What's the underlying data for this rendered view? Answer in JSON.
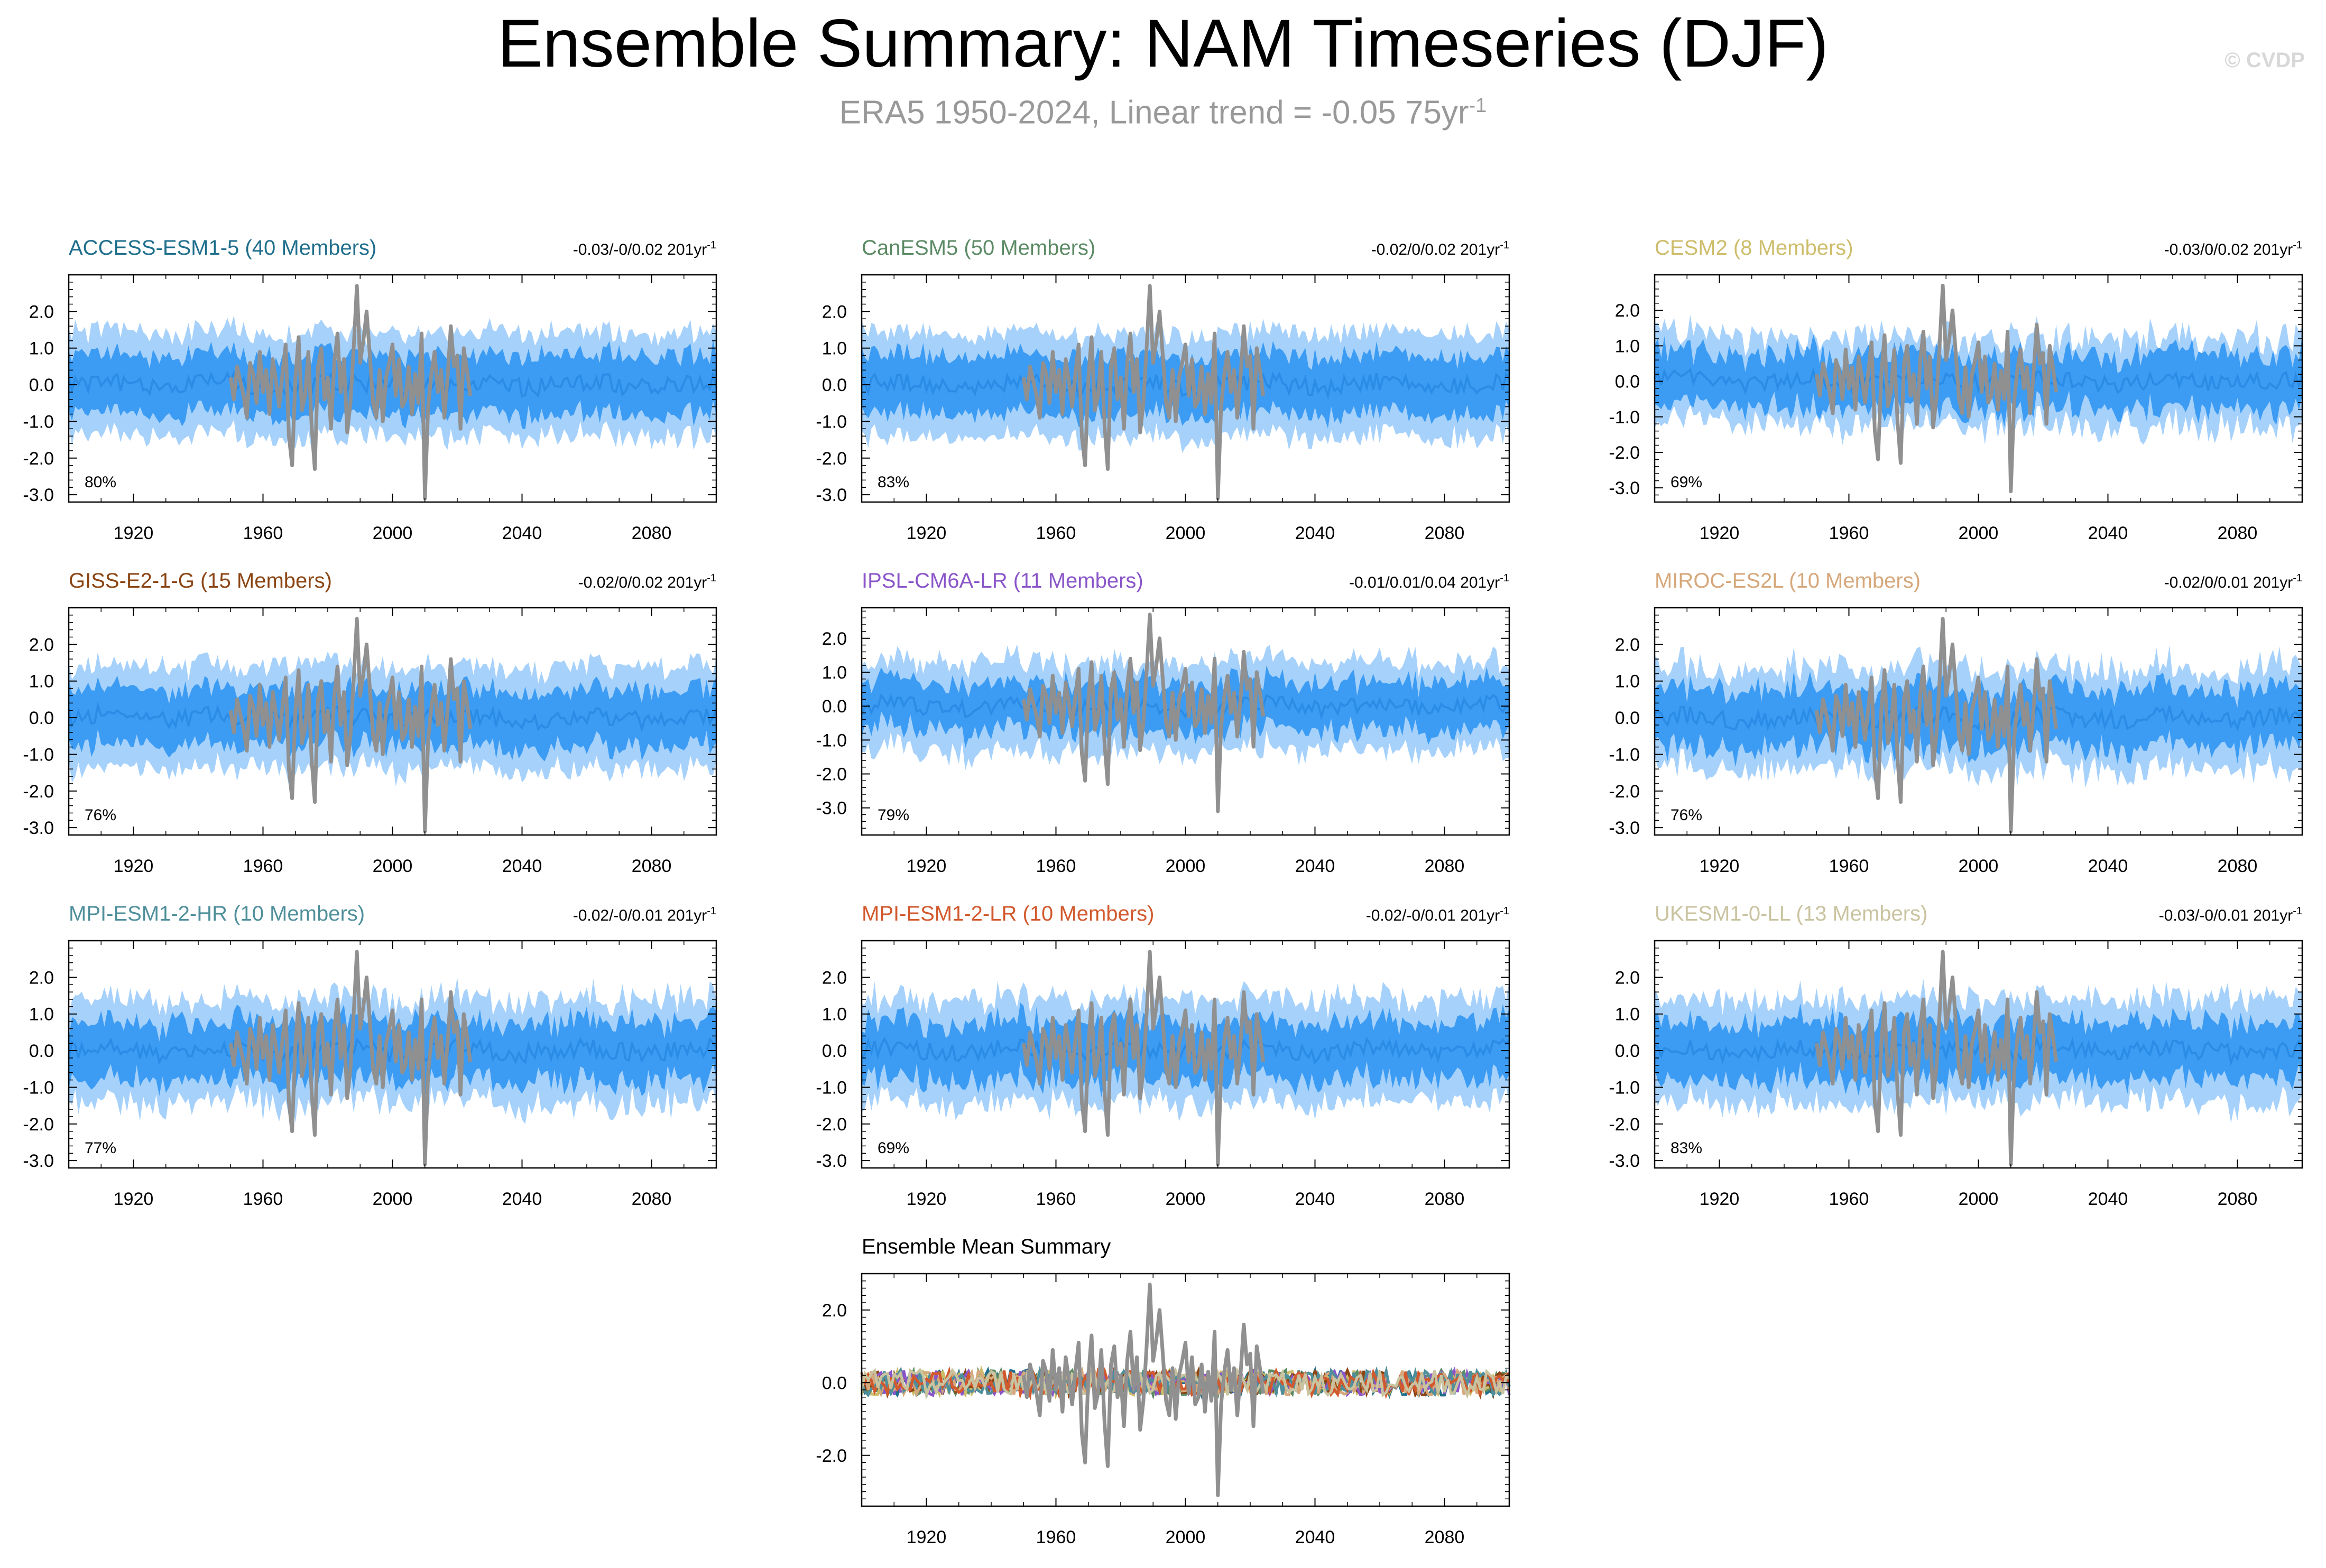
{
  "title": "Ensemble Summary: NAM Timeseries (DJF)",
  "subtitle": {
    "prefix": "ERA5 1950-2024, Linear trend = -0.05 75yr",
    "superscript": "-1"
  },
  "copyright": "© CVDP",
  "colors": {
    "band_outer": "#a6d1fb",
    "band_inner": "#3c9cf3",
    "mean_line": "#2a8ce6",
    "obs_line": "#909090",
    "axis": "#000000"
  },
  "chart_data": [
    {
      "type": "area",
      "title": "ACCESS-ESM1-5 (40 Members)",
      "title_color": "#1f6e8c",
      "trend_text": "-0.03/-0/0.02 201yr",
      "trend_sup": "-1",
      "percent_label": "80%",
      "x_ticks": [
        "1920",
        "1960",
        "2000",
        "2040",
        "2080"
      ],
      "y_ticks": [
        "2.0",
        "1.0",
        "0.0",
        "-1.0",
        "-2.0",
        "-3.0"
      ],
      "xlim": [
        1900,
        2100
      ],
      "ylim": [
        -3.2,
        3.0
      ],
      "outer_band_amp": 1.35,
      "inner_band_amp": 0.75,
      "noise": 0.35,
      "seed": 11
    },
    {
      "type": "area",
      "title": "CanESM5 (50 Members)",
      "title_color": "#5b8a64",
      "trend_text": "-0.02/0/0.02 201yr",
      "trend_sup": "-1",
      "percent_label": "83%",
      "x_ticks": [
        "1920",
        "1960",
        "2000",
        "2040",
        "2080"
      ],
      "y_ticks": [
        "2.0",
        "1.0",
        "0.0",
        "-1.0",
        "-2.0",
        "-3.0"
      ],
      "xlim": [
        1900,
        2100
      ],
      "ylim": [
        -3.2,
        3.0
      ],
      "outer_band_amp": 1.35,
      "inner_band_amp": 0.75,
      "noise": 0.3,
      "seed": 23
    },
    {
      "type": "area",
      "title": "CESM2 (8 Members)",
      "title_color": "#cdbd6b",
      "trend_text": "-0.03/0/0.02 201yr",
      "trend_sup": "-1",
      "percent_label": "69%",
      "x_ticks": [
        "1920",
        "1960",
        "2000",
        "2040",
        "2080"
      ],
      "y_ticks": [
        "2.0",
        "1.0",
        "0.0",
        "-1.0",
        "-2.0",
        "-3.0"
      ],
      "xlim": [
        1900,
        2100
      ],
      "ylim": [
        -3.4,
        3.0
      ],
      "outer_band_amp": 1.1,
      "inner_band_amp": 0.65,
      "noise": 0.7,
      "seed": 37
    },
    {
      "type": "area",
      "title": "GISS-E2-1-G (15 Members)",
      "title_color": "#8b4513",
      "trend_text": "-0.02/0/0.02 201yr",
      "trend_sup": "-1",
      "percent_label": "76%",
      "x_ticks": [
        "1920",
        "1960",
        "2000",
        "2040",
        "2080"
      ],
      "y_ticks": [
        "2.0",
        "1.0",
        "0.0",
        "-1.0",
        "-2.0",
        "-3.0"
      ],
      "xlim": [
        1900,
        2100
      ],
      "ylim": [
        -3.2,
        3.0
      ],
      "outer_band_amp": 1.3,
      "inner_band_amp": 0.7,
      "noise": 0.45,
      "seed": 41
    },
    {
      "type": "area",
      "title": "IPSL-CM6A-LR (11 Members)",
      "title_color": "#8a55c9",
      "trend_text": "-0.01/0.01/0.04 201yr",
      "trend_sup": "-1",
      "percent_label": "79%",
      "x_ticks": [
        "1920",
        "1960",
        "2000",
        "2040",
        "2080"
      ],
      "y_ticks": [
        "2.0",
        "1.0",
        "0.0",
        "-1.0",
        "-2.0",
        "-3.0"
      ],
      "xlim": [
        1900,
        2100
      ],
      "ylim": [
        -3.8,
        2.9
      ],
      "outer_band_amp": 1.2,
      "inner_band_amp": 0.6,
      "noise": 0.6,
      "seed": 53
    },
    {
      "type": "area",
      "title": "MIROC-ES2L (10 Members)",
      "title_color": "#d6a77a",
      "trend_text": "-0.02/0/0.01 201yr",
      "trend_sup": "-1",
      "percent_label": "76%",
      "x_ticks": [
        "1920",
        "1960",
        "2000",
        "2040",
        "2080"
      ],
      "y_ticks": [
        "2.0",
        "1.0",
        "0.0",
        "-1.0",
        "-2.0",
        "-3.0"
      ],
      "xlim": [
        1900,
        2100
      ],
      "ylim": [
        -3.2,
        3.0
      ],
      "outer_band_amp": 1.25,
      "inner_band_amp": 0.7,
      "noise": 0.6,
      "seed": 67
    },
    {
      "type": "area",
      "title": "MPI-ESM1-2-HR (10 Members)",
      "title_color": "#4f8f9b",
      "trend_text": "-0.02/-0/0.01 201yr",
      "trend_sup": "-1",
      "percent_label": "77%",
      "x_ticks": [
        "1920",
        "1960",
        "2000",
        "2040",
        "2080"
      ],
      "y_ticks": [
        "2.0",
        "1.0",
        "0.0",
        "-1.0",
        "-2.0",
        "-3.0"
      ],
      "xlim": [
        1900,
        2100
      ],
      "ylim": [
        -3.2,
        3.0
      ],
      "outer_band_amp": 1.3,
      "inner_band_amp": 0.7,
      "noise": 0.6,
      "seed": 71
    },
    {
      "type": "area",
      "title": "MPI-ESM1-2-LR (10 Members)",
      "title_color": "#d2592d",
      "trend_text": "-0.02/-0/0.01 201yr",
      "trend_sup": "-1",
      "percent_label": "69%",
      "x_ticks": [
        "1920",
        "1960",
        "2000",
        "2040",
        "2080"
      ],
      "y_ticks": [
        "2.0",
        "1.0",
        "0.0",
        "-1.0",
        "-2.0",
        "-3.0"
      ],
      "xlim": [
        1900,
        2100
      ],
      "ylim": [
        -3.2,
        3.0
      ],
      "outer_band_amp": 1.3,
      "inner_band_amp": 0.7,
      "noise": 0.6,
      "seed": 83
    },
    {
      "type": "area",
      "title": "UKESM1-0-LL (13 Members)",
      "title_color": "#c9c3a0",
      "trend_text": "-0.03/-0/0.01 201yr",
      "trend_sup": "-1",
      "percent_label": "83%",
      "x_ticks": [
        "1920",
        "1960",
        "2000",
        "2040",
        "2080"
      ],
      "y_ticks": [
        "2.0",
        "1.0",
        "0.0",
        "-1.0",
        "-2.0",
        "-3.0"
      ],
      "xlim": [
        1900,
        2100
      ],
      "ylim": [
        -3.2,
        3.0
      ],
      "outer_band_amp": 1.3,
      "inner_band_amp": 0.7,
      "noise": 0.55,
      "seed": 97
    },
    {
      "type": "line",
      "title": "Ensemble Mean Summary",
      "title_color": "#000000",
      "x_ticks": [
        "1920",
        "1960",
        "2000",
        "2040",
        "2080"
      ],
      "y_ticks": [
        "2.0",
        "0.0",
        "-2.0"
      ],
      "xlim": [
        1900,
        2100
      ],
      "ylim": [
        -3.4,
        3.0
      ],
      "series_colors": [
        "#1f6e8c",
        "#5b8a64",
        "#cdbd6b",
        "#8b4513",
        "#8a55c9",
        "#d6a77a",
        "#4f8f9b",
        "#d2592d",
        "#c9c3a0"
      ],
      "series_amp": 0.35
    }
  ],
  "obs_series": {
    "name": "ERA5",
    "x_start": 1950,
    "x_end": 2024,
    "values": [
      0.2,
      -0.4,
      0.5,
      0.1,
      -0.3,
      -0.9,
      0.6,
      0.3,
      -0.5,
      0.9,
      -0.2,
      0.4,
      -0.8,
      0.7,
      0.1,
      -0.6,
      0.3,
      1.1,
      -1.4,
      -2.2,
      0.2,
      1.3,
      -0.7,
      -0.3,
      0.9,
      -1.1,
      -2.3,
      0.5,
      1.0,
      -0.4,
      0.2,
      -1.2,
      0.6,
      1.4,
      -0.2,
      0.7,
      -1.3,
      -0.5,
      1.0,
      2.7,
      0.6,
      1.2,
      2.0,
      0.8,
      -0.5,
      -0.9,
      0.4,
      -1.0,
      0.2,
      0.6,
      1.1,
      -0.3,
      0.7,
      -0.6,
      -0.4,
      0.5,
      -0.8,
      0.3,
      -0.5,
      1.4,
      -3.1,
      -0.6,
      0.3,
      0.9,
      -0.2,
      0.4,
      -0.9,
      0.2,
      1.6,
      0.5,
      0.8,
      -1.2,
      1.0,
      0.4,
      -0.3
    ]
  }
}
